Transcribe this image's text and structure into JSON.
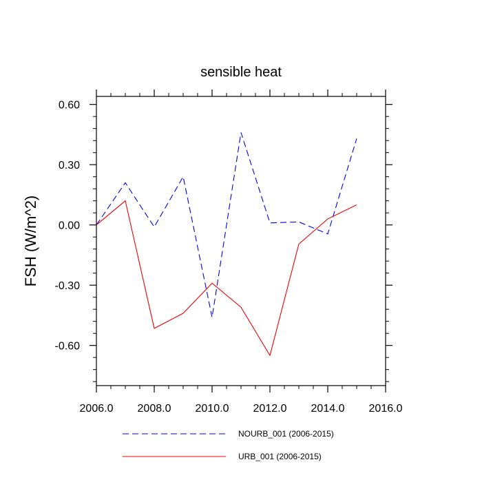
{
  "chart_data": {
    "type": "line",
    "title": "sensible heat",
    "xlabel": "",
    "ylabel": "FSH  (W/m^2)",
    "xlim": [
      2006,
      2016
    ],
    "ylim": [
      -0.8,
      0.64
    ],
    "x_ticks": [
      2006,
      2008,
      2010,
      2012,
      2014,
      2016
    ],
    "x_tick_labels": [
      "2006.0",
      "2008.0",
      "2010.0",
      "2012.0",
      "2014.0",
      "2016.0"
    ],
    "y_ticks": [
      0.6,
      0.3,
      0.0,
      -0.3,
      -0.6
    ],
    "y_tick_labels": [
      "0.60",
      "0.30",
      "0.00",
      "-0.30",
      "-0.60"
    ],
    "x": [
      2006,
      2007,
      2008,
      2009,
      2010,
      2011,
      2012,
      2013,
      2014,
      2015
    ],
    "series": [
      {
        "name": "NOURB_001 (2006-2015)",
        "color": "#0000ee",
        "dash": "dashed",
        "values": [
          0.0,
          0.21,
          -0.01,
          0.24,
          -0.46,
          0.46,
          0.01,
          0.015,
          -0.045,
          0.43
        ]
      },
      {
        "name": "URB_001 (2006-2015)",
        "color": "#ee0000",
        "dash": "solid",
        "values": [
          0.0,
          0.12,
          -0.515,
          -0.44,
          -0.29,
          -0.41,
          -0.65,
          -0.095,
          0.03,
          0.1
        ]
      }
    ],
    "legend_position": "bottom",
    "grid": false
  }
}
